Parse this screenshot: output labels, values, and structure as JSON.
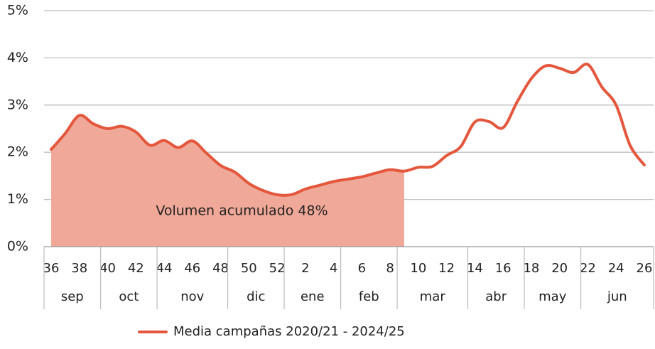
{
  "chart_data": {
    "type": "line",
    "categories": [
      "36",
      null,
      "38",
      null,
      "40",
      null,
      "42",
      null,
      "44",
      null,
      "46",
      null,
      "48",
      null,
      "50",
      null,
      "52",
      null,
      "2",
      null,
      "4",
      null,
      "6",
      null,
      "8",
      null,
      "10",
      null,
      "12",
      null,
      "14",
      null,
      "16",
      null,
      "18",
      null,
      "20",
      null,
      "22",
      null,
      "24",
      null,
      "26"
    ],
    "months": [
      {
        "label": "sep",
        "weeks": 4
      },
      {
        "label": "oct",
        "weeks": 4
      },
      {
        "label": "nov",
        "weeks": 5
      },
      {
        "label": "dic",
        "weeks": 4
      },
      {
        "label": "ene",
        "weeks": 4
      },
      {
        "label": "feb",
        "weeks": 4
      },
      {
        "label": "mar",
        "weeks": 5
      },
      {
        "label": "abr",
        "weeks": 4
      },
      {
        "label": "may",
        "weeks": 4
      },
      {
        "label": "jun",
        "weeks": 5
      }
    ],
    "series": [
      {
        "name": "Media campañas 2020/21 - 2024/25",
        "color": "#e4573d",
        "values": [
          2.06,
          2.4,
          2.78,
          2.6,
          2.5,
          2.55,
          2.43,
          2.15,
          2.25,
          2.1,
          2.24,
          1.98,
          1.72,
          1.58,
          1.34,
          1.19,
          1.1,
          1.1,
          1.22,
          1.3,
          1.38,
          1.43,
          1.48,
          1.56,
          1.63,
          1.6,
          1.68,
          1.7,
          1.93,
          2.12,
          2.64,
          2.65,
          2.52,
          3.07,
          3.56,
          3.83,
          3.78,
          3.69,
          3.86,
          3.38,
          3.0,
          2.14,
          1.73
        ]
      }
    ],
    "area": {
      "label": "Volumen acumulado 48%",
      "color": "#f0a898",
      "weeks": 26
    },
    "ylim": [
      0,
      5
    ],
    "yticks": [
      {
        "value": 0,
        "label": "0%"
      },
      {
        "value": 1,
        "label": "1%"
      },
      {
        "value": 2,
        "label": "2%"
      },
      {
        "value": 3,
        "label": "3%"
      },
      {
        "value": 4,
        "label": "4%"
      },
      {
        "value": 5,
        "label": "5%"
      }
    ],
    "grid": true
  }
}
